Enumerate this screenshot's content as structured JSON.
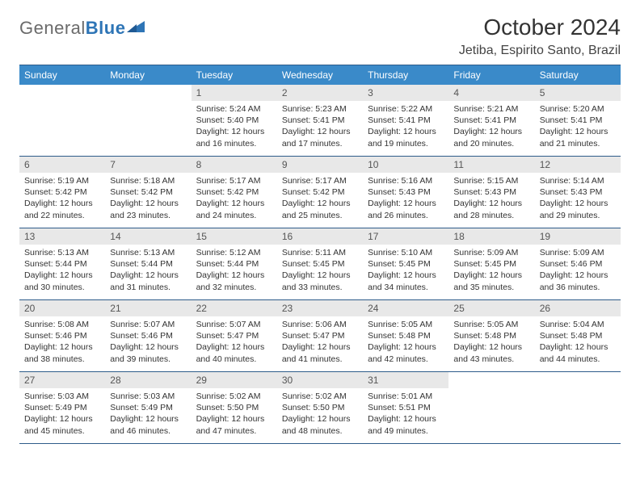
{
  "logo": {
    "text1": "General",
    "text2": "Blue"
  },
  "title": "October 2024",
  "location": "Jetiba, Espirito Santo, Brazil",
  "colors": {
    "header_bg": "#3a8ac9",
    "header_text": "#ffffff",
    "daynum_bg": "#e8e8e8",
    "rule": "#2e5c8a",
    "logo_gray": "#6b6b6b",
    "logo_blue": "#2e75b6"
  },
  "weekdays": [
    "Sunday",
    "Monday",
    "Tuesday",
    "Wednesday",
    "Thursday",
    "Friday",
    "Saturday"
  ],
  "first_weekday_index": 2,
  "days": [
    {
      "n": 1,
      "sunrise": "5:24 AM",
      "sunset": "5:40 PM",
      "day_h": 12,
      "day_m": 16
    },
    {
      "n": 2,
      "sunrise": "5:23 AM",
      "sunset": "5:41 PM",
      "day_h": 12,
      "day_m": 17
    },
    {
      "n": 3,
      "sunrise": "5:22 AM",
      "sunset": "5:41 PM",
      "day_h": 12,
      "day_m": 19
    },
    {
      "n": 4,
      "sunrise": "5:21 AM",
      "sunset": "5:41 PM",
      "day_h": 12,
      "day_m": 20
    },
    {
      "n": 5,
      "sunrise": "5:20 AM",
      "sunset": "5:41 PM",
      "day_h": 12,
      "day_m": 21
    },
    {
      "n": 6,
      "sunrise": "5:19 AM",
      "sunset": "5:42 PM",
      "day_h": 12,
      "day_m": 22
    },
    {
      "n": 7,
      "sunrise": "5:18 AM",
      "sunset": "5:42 PM",
      "day_h": 12,
      "day_m": 23
    },
    {
      "n": 8,
      "sunrise": "5:17 AM",
      "sunset": "5:42 PM",
      "day_h": 12,
      "day_m": 24
    },
    {
      "n": 9,
      "sunrise": "5:17 AM",
      "sunset": "5:42 PM",
      "day_h": 12,
      "day_m": 25
    },
    {
      "n": 10,
      "sunrise": "5:16 AM",
      "sunset": "5:43 PM",
      "day_h": 12,
      "day_m": 26
    },
    {
      "n": 11,
      "sunrise": "5:15 AM",
      "sunset": "5:43 PM",
      "day_h": 12,
      "day_m": 28
    },
    {
      "n": 12,
      "sunrise": "5:14 AM",
      "sunset": "5:43 PM",
      "day_h": 12,
      "day_m": 29
    },
    {
      "n": 13,
      "sunrise": "5:13 AM",
      "sunset": "5:44 PM",
      "day_h": 12,
      "day_m": 30
    },
    {
      "n": 14,
      "sunrise": "5:13 AM",
      "sunset": "5:44 PM",
      "day_h": 12,
      "day_m": 31
    },
    {
      "n": 15,
      "sunrise": "5:12 AM",
      "sunset": "5:44 PM",
      "day_h": 12,
      "day_m": 32
    },
    {
      "n": 16,
      "sunrise": "5:11 AM",
      "sunset": "5:45 PM",
      "day_h": 12,
      "day_m": 33
    },
    {
      "n": 17,
      "sunrise": "5:10 AM",
      "sunset": "5:45 PM",
      "day_h": 12,
      "day_m": 34
    },
    {
      "n": 18,
      "sunrise": "5:09 AM",
      "sunset": "5:45 PM",
      "day_h": 12,
      "day_m": 35
    },
    {
      "n": 19,
      "sunrise": "5:09 AM",
      "sunset": "5:46 PM",
      "day_h": 12,
      "day_m": 36
    },
    {
      "n": 20,
      "sunrise": "5:08 AM",
      "sunset": "5:46 PM",
      "day_h": 12,
      "day_m": 38
    },
    {
      "n": 21,
      "sunrise": "5:07 AM",
      "sunset": "5:46 PM",
      "day_h": 12,
      "day_m": 39
    },
    {
      "n": 22,
      "sunrise": "5:07 AM",
      "sunset": "5:47 PM",
      "day_h": 12,
      "day_m": 40
    },
    {
      "n": 23,
      "sunrise": "5:06 AM",
      "sunset": "5:47 PM",
      "day_h": 12,
      "day_m": 41
    },
    {
      "n": 24,
      "sunrise": "5:05 AM",
      "sunset": "5:48 PM",
      "day_h": 12,
      "day_m": 42
    },
    {
      "n": 25,
      "sunrise": "5:05 AM",
      "sunset": "5:48 PM",
      "day_h": 12,
      "day_m": 43
    },
    {
      "n": 26,
      "sunrise": "5:04 AM",
      "sunset": "5:48 PM",
      "day_h": 12,
      "day_m": 44
    },
    {
      "n": 27,
      "sunrise": "5:03 AM",
      "sunset": "5:49 PM",
      "day_h": 12,
      "day_m": 45
    },
    {
      "n": 28,
      "sunrise": "5:03 AM",
      "sunset": "5:49 PM",
      "day_h": 12,
      "day_m": 46
    },
    {
      "n": 29,
      "sunrise": "5:02 AM",
      "sunset": "5:50 PM",
      "day_h": 12,
      "day_m": 47
    },
    {
      "n": 30,
      "sunrise": "5:02 AM",
      "sunset": "5:50 PM",
      "day_h": 12,
      "day_m": 48
    },
    {
      "n": 31,
      "sunrise": "5:01 AM",
      "sunset": "5:51 PM",
      "day_h": 12,
      "day_m": 49
    }
  ],
  "labels": {
    "sunrise": "Sunrise:",
    "sunset": "Sunset:",
    "daylight": "Daylight:",
    "hours": "hours",
    "and": "and",
    "minutes": "minutes."
  }
}
